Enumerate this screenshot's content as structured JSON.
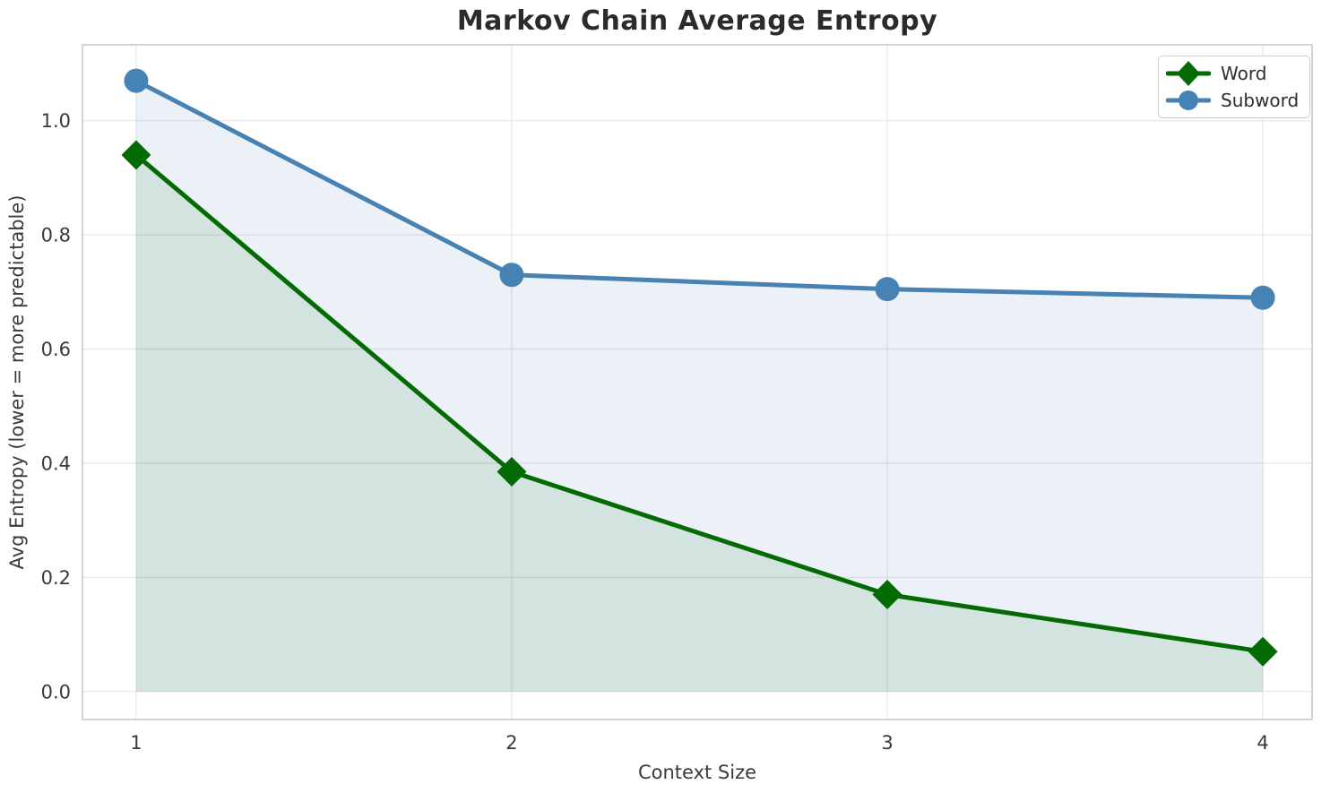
{
  "chart_data": {
    "type": "line",
    "title": "Markov Chain Average Entropy",
    "xlabel": "Context Size",
    "ylabel": "Avg Entropy (lower = more predictable)",
    "x": [
      1,
      2,
      3,
      4
    ],
    "series": [
      {
        "name": "Word",
        "marker": "diamond",
        "color": "#046a04",
        "fill_opacity": 0.1,
        "values": [
          0.94,
          0.385,
          0.17,
          0.07
        ]
      },
      {
        "name": "Subword",
        "marker": "circle",
        "color": "#4682b4",
        "fill_opacity": 0.11,
        "values": [
          1.07,
          0.73,
          0.705,
          0.69
        ]
      }
    ],
    "fill_baseline": 0,
    "xlim": [
      0.857,
      4.131
    ],
    "ylim": [
      -0.049,
      1.133
    ],
    "xticks": [
      1,
      2,
      3,
      4
    ],
    "xtick_labels": [
      "1",
      "2",
      "3",
      "4"
    ],
    "yticks": [
      0.0,
      0.2,
      0.4,
      0.6,
      0.8,
      1.0
    ],
    "ytick_labels": [
      "0.0",
      "0.2",
      "0.4",
      "0.6",
      "0.8",
      "1.0"
    ],
    "grid": true,
    "legend": {
      "position": "top-right",
      "entries": [
        "Word",
        "Subword"
      ]
    },
    "colors": {
      "grid": "#e7e7e7",
      "spine": "#c9c9c9",
      "title_text": "#2b2b2b",
      "tick_text": "#3a3a3a"
    }
  }
}
